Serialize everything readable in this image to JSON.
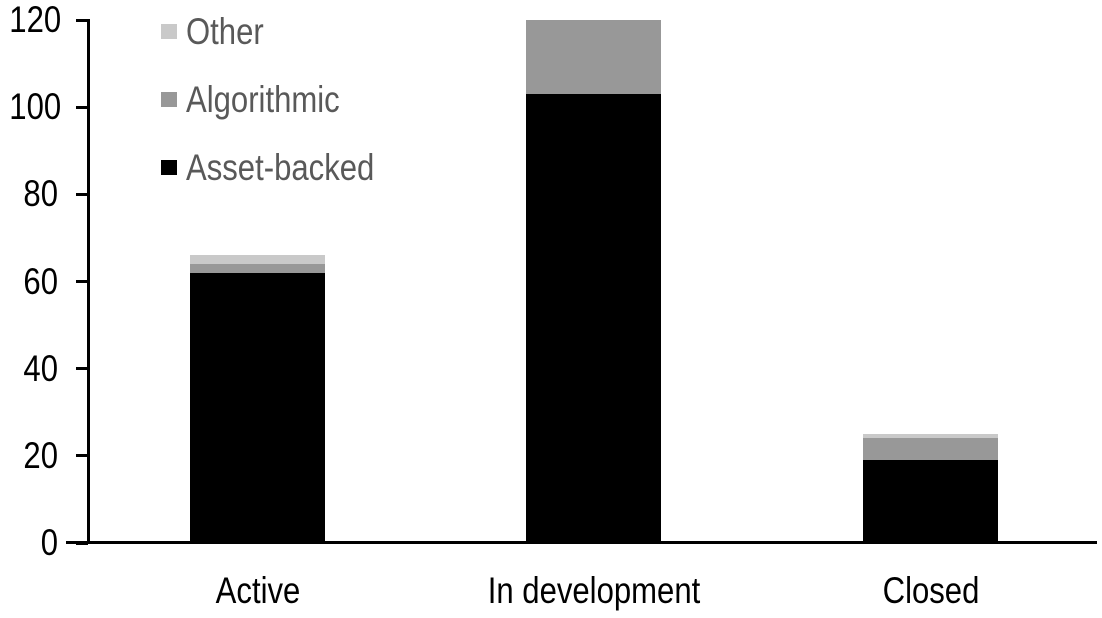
{
  "chart_data": {
    "type": "bar",
    "stacked": true,
    "title": "",
    "xlabel": "",
    "ylabel": "",
    "categories": [
      "Active",
      "In development",
      "Closed"
    ],
    "series": [
      {
        "name": "Asset-backed",
        "color": "#000000",
        "values": [
          62,
          103,
          19
        ]
      },
      {
        "name": "Algorithmic",
        "color": "#989898",
        "values": [
          2,
          17,
          5
        ]
      },
      {
        "name": "Other",
        "color": "#c9c9c9",
        "values": [
          2,
          0,
          1
        ]
      }
    ],
    "stack_totals": [
      66,
      120,
      25
    ],
    "ylim": [
      0,
      120
    ],
    "y_ticks": [
      0,
      20,
      40,
      60,
      80,
      100,
      120
    ],
    "grid": false,
    "background": "#ffffff",
    "axis_color": "#000000",
    "tick_label_color": "#000000",
    "category_label_color": "#000000",
    "legend": {
      "position": "top-left-inside",
      "order": [
        "Other",
        "Algorithmic",
        "Asset-backed"
      ],
      "text_color": "#595959"
    }
  }
}
